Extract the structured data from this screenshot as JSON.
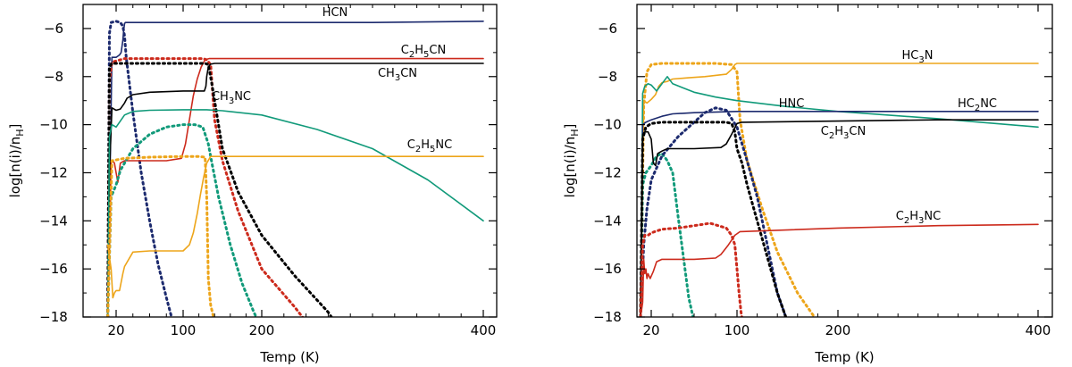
{
  "colors": {
    "navy": "#1c2a6e",
    "red": "#cc2a1c",
    "black": "#000000",
    "teal": "#119a7a",
    "orange": "#eda51a"
  },
  "chart_data": [
    {
      "type": "line",
      "id": "left",
      "title": "",
      "xlabel": "Temp (K)",
      "ylabel": "log[n(i)/n_H]",
      "xlim": [
        10,
        400
      ],
      "ylim": [
        -18,
        -5
      ],
      "xticks": [
        20,
        100,
        200,
        400
      ],
      "yticks": [
        -18,
        -16,
        -14,
        -12,
        -10,
        -8,
        -6
      ],
      "series": [
        {
          "name": "HCN",
          "label_parts": [
            [
              "HCN",
              ""
            ]
          ],
          "color": "navy",
          "style": "solid",
          "x": [
            10,
            15,
            20,
            22,
            24,
            26,
            28,
            29,
            30,
            31,
            33,
            40,
            100,
            200,
            300,
            400
          ],
          "y": [
            -18,
            -7.2,
            -7.2,
            -7.15,
            -7.1,
            -7.0,
            -6.5,
            -6.1,
            -5.8,
            -5.75,
            -5.75,
            -5.75,
            -5.75,
            -5.75,
            -5.75,
            -5.7
          ]
        },
        {
          "name": "HCN (gas)",
          "color": "navy",
          "style": "dotted",
          "x": [
            10,
            12,
            14,
            20,
            25,
            28,
            30,
            32,
            40,
            50,
            60,
            70,
            80,
            90
          ],
          "y": [
            -18,
            -6.2,
            -5.75,
            -5.7,
            -5.75,
            -5.9,
            -6.3,
            -7.2,
            -9.5,
            -12,
            -14,
            -15.8,
            -17.2,
            -18.5
          ]
        },
        {
          "name": "C2H5CN",
          "label_parts": [
            [
              "C",
              ""
            ],
            [
              "2",
              "sub"
            ],
            [
              "H",
              ""
            ],
            [
              "5",
              "sub"
            ],
            [
              "CN",
              ""
            ]
          ],
          "color": "red",
          "style": "solid",
          "x": [
            10,
            12,
            14,
            16,
            18,
            20,
            22,
            25,
            30,
            40,
            60,
            80,
            98,
            103,
            108,
            113,
            118,
            123,
            128,
            133,
            140,
            200,
            300,
            400
          ],
          "y": [
            -18,
            -15,
            -11.5,
            -11.5,
            -11.6,
            -12.0,
            -12.4,
            -11.6,
            -11.5,
            -11.5,
            -11.5,
            -11.5,
            -11.4,
            -10.8,
            -9.8,
            -8.8,
            -8.1,
            -7.6,
            -7.3,
            -7.25,
            -7.25,
            -7.25,
            -7.25,
            -7.25
          ]
        },
        {
          "name": "C2H5CN (gas)",
          "color": "red",
          "style": "dotted",
          "x": [
            10,
            12,
            15,
            30,
            60,
            90,
            110,
            125,
            130,
            135,
            140,
            150,
            170,
            200,
            230,
            245
          ],
          "y": [
            -18,
            -8.2,
            -7.4,
            -7.25,
            -7.25,
            -7.25,
            -7.25,
            -7.25,
            -7.3,
            -7.5,
            -9.8,
            -11.5,
            -13.6,
            -16,
            -17.6,
            -18.5
          ]
        },
        {
          "name": "CH3CN",
          "label_parts": [
            [
              "CH",
              ""
            ],
            [
              "3",
              "sub"
            ],
            [
              "CN",
              ""
            ]
          ],
          "color": "black",
          "style": "solid",
          "x": [
            10,
            12,
            15,
            20,
            25,
            30,
            33,
            40,
            60,
            100,
            127,
            129,
            130,
            132,
            135,
            140,
            200,
            300,
            400
          ],
          "y": [
            -18,
            -12,
            -9.3,
            -9.4,
            -9.35,
            -9.1,
            -8.9,
            -8.75,
            -8.65,
            -8.6,
            -8.6,
            -8.4,
            -8.0,
            -7.6,
            -7.48,
            -7.45,
            -7.45,
            -7.45,
            -7.45
          ]
        },
        {
          "name": "CH3CN (gas)",
          "color": "black",
          "style": "dotted",
          "x": [
            10,
            12,
            15,
            30,
            60,
            90,
            120,
            128,
            132,
            136,
            150,
            170,
            200,
            230,
            260,
            270
          ],
          "y": [
            -18,
            -7.6,
            -7.45,
            -7.45,
            -7.45,
            -7.45,
            -7.45,
            -7.45,
            -7.5,
            -8.2,
            -11,
            -12.8,
            -14.6,
            -16.3,
            -17.8,
            -18.5
          ]
        },
        {
          "name": "CH3NC",
          "label_parts": [
            [
              "CH",
              ""
            ],
            [
              "3",
              "sub"
            ],
            [
              "NC",
              ""
            ]
          ],
          "color": "teal",
          "style": "solid",
          "x": [
            10,
            12,
            15,
            20,
            25,
            30,
            40,
            60,
            100,
            130,
            150,
            200,
            250,
            300,
            350,
            400
          ],
          "y": [
            -18,
            -10.5,
            -10,
            -10.1,
            -9.85,
            -9.6,
            -9.45,
            -9.4,
            -9.38,
            -9.38,
            -9.42,
            -9.6,
            -10.2,
            -11.0,
            -12.3,
            -14.0
          ]
        },
        {
          "name": "CH3NC (gas)",
          "color": "teal",
          "style": "dotted",
          "x": [
            10,
            14,
            20,
            25,
            30,
            40,
            60,
            80,
            100,
            115,
            125,
            132,
            136,
            145,
            160,
            175,
            190,
            200
          ],
          "y": [
            -18,
            -13,
            -12.5,
            -11.9,
            -11.6,
            -11.0,
            -10.4,
            -10.1,
            -10.0,
            -10.0,
            -10.1,
            -10.8,
            -11.5,
            -13,
            -15,
            -16.6,
            -17.8,
            -18.5
          ]
        },
        {
          "name": "C2H5NC",
          "label_parts": [
            [
              "C",
              ""
            ],
            [
              "2",
              "sub"
            ],
            [
              "H",
              ""
            ],
            [
              "5",
              "sub"
            ],
            [
              "NC",
              ""
            ]
          ],
          "color": "orange",
          "style": "solid",
          "x": [
            10,
            14,
            16,
            18,
            20,
            24,
            28,
            30,
            40,
            60,
            80,
            100,
            108,
            113,
            118,
            122,
            126,
            130,
            135,
            200,
            300,
            400
          ],
          "y": [
            -15,
            -16,
            -17.2,
            -17.0,
            -16.9,
            -16.9,
            -16.2,
            -15.9,
            -15.3,
            -15.25,
            -15.25,
            -15.25,
            -15.0,
            -14.5,
            -13.7,
            -12.9,
            -12.2,
            -11.6,
            -11.32,
            -11.32,
            -11.32,
            -11.32
          ]
        },
        {
          "name": "C2H5NC (gas)",
          "color": "orange",
          "style": "dotted",
          "x": [
            10,
            15,
            30,
            60,
            100,
            120,
            128,
            130,
            132,
            135,
            140,
            145,
            150
          ],
          "y": [
            -18,
            -11.5,
            -11.4,
            -11.35,
            -11.32,
            -11.32,
            -11.35,
            -13,
            -16.4,
            -17.5,
            -18.2,
            -18.5,
            -18.7
          ]
        }
      ]
    },
    {
      "type": "line",
      "id": "right",
      "title": "",
      "xlabel": "Temp (K)",
      "ylabel": "log[n(i)/n_H]",
      "xlim": [
        10,
        400
      ],
      "ylim": [
        -18,
        -5
      ],
      "xticks": [
        20,
        100,
        200,
        400
      ],
      "yticks": [
        -18,
        -16,
        -14,
        -12,
        -10,
        -8,
        -6
      ],
      "series": [
        {
          "name": "HC3N",
          "label_parts": [
            [
              "HC",
              ""
            ],
            [
              "3",
              "sub"
            ],
            [
              "N",
              ""
            ]
          ],
          "color": "orange",
          "style": "solid",
          "x": [
            10,
            13,
            16,
            20,
            24,
            27,
            30,
            35,
            40,
            55,
            70,
            80,
            90,
            95,
            98,
            100,
            102,
            110,
            200,
            300,
            400
          ],
          "y": [
            -18,
            -9.0,
            -9.1,
            -8.95,
            -8.75,
            -8.4,
            -8.25,
            -8.2,
            -8.1,
            -8.05,
            -8.0,
            -7.95,
            -7.9,
            -7.7,
            -7.5,
            -7.45,
            -7.45,
            -7.45,
            -7.45,
            -7.45,
            -7.45
          ]
        },
        {
          "name": "HC3N (gas)",
          "color": "orange",
          "style": "dotted",
          "x": [
            10,
            13,
            16,
            20,
            30,
            45,
            60,
            80,
            95,
            100,
            103,
            110,
            125,
            140,
            160,
            180,
            186
          ],
          "y": [
            -18,
            -9.2,
            -7.8,
            -7.5,
            -7.45,
            -7.45,
            -7.45,
            -7.45,
            -7.5,
            -7.8,
            -9.8,
            -11.5,
            -13.5,
            -15.3,
            -17,
            -18.2,
            -18.5
          ]
        },
        {
          "name": "HNC",
          "label_parts": [
            [
              "HNC",
              ""
            ]
          ],
          "color": "teal",
          "style": "solid",
          "x": [
            10,
            12,
            14,
            17,
            20,
            25,
            30,
            35,
            40,
            60,
            80,
            100,
            150,
            200,
            300,
            400
          ],
          "y": [
            -18,
            -8.7,
            -8.4,
            -8.3,
            -8.35,
            -8.6,
            -8.3,
            -8.0,
            -8.3,
            -8.65,
            -8.85,
            -9.0,
            -9.25,
            -9.45,
            -9.75,
            -10.1
          ]
        },
        {
          "name": "HNC (gas)",
          "color": "teal",
          "style": "dotted",
          "x": [
            10,
            12,
            15,
            20,
            25,
            30,
            35,
            40,
            45,
            50,
            55,
            60,
            62
          ],
          "y": [
            -18,
            -12.5,
            -12.0,
            -11.7,
            -11.3,
            -11.2,
            -11.5,
            -12.0,
            -13.8,
            -15.5,
            -17.2,
            -18.2,
            -18.6
          ]
        },
        {
          "name": "HC2NC",
          "label_parts": [
            [
              "HC",
              ""
            ],
            [
              "2",
              "sub"
            ],
            [
              "NC",
              ""
            ]
          ],
          "color": "navy",
          "style": "solid",
          "x": [
            10,
            12,
            15,
            20,
            30,
            40,
            60,
            100,
            200,
            300,
            400
          ],
          "y": [
            -18,
            -10.0,
            -9.9,
            -9.8,
            -9.65,
            -9.55,
            -9.5,
            -9.45,
            -9.45,
            -9.45,
            -9.45
          ]
        },
        {
          "name": "HC2NC (gas)",
          "color": "navy",
          "style": "dotted",
          "x": [
            10,
            13,
            16,
            20,
            30,
            45,
            60,
            70,
            80,
            90,
            100,
            110,
            120,
            130,
            140,
            150,
            153
          ],
          "y": [
            -18,
            -15,
            -13.5,
            -12.3,
            -11.3,
            -10.5,
            -9.9,
            -9.5,
            -9.3,
            -9.4,
            -10.1,
            -11.5,
            -13,
            -15,
            -17,
            -18.2,
            -18.5
          ]
        },
        {
          "name": "C2H3CN",
          "label_parts": [
            [
              "C",
              ""
            ],
            [
              "2",
              "sub"
            ],
            [
              "H",
              ""
            ],
            [
              "3",
              "sub"
            ],
            [
              "CN",
              ""
            ]
          ],
          "color": "black",
          "style": "solid",
          "x": [
            10,
            12,
            14,
            17,
            20,
            22,
            24,
            26,
            30,
            35,
            40,
            60,
            85,
            90,
            95,
            100,
            105,
            200,
            300,
            400
          ],
          "y": [
            -18,
            -10.4,
            -10.3,
            -10.3,
            -10.6,
            -11.6,
            -11.7,
            -11.2,
            -11.1,
            -11.0,
            -11.0,
            -11.0,
            -10.95,
            -10.8,
            -10.4,
            -9.95,
            -9.9,
            -9.85,
            -9.8,
            -9.8
          ]
        },
        {
          "name": "C2H3CN (gas)",
          "color": "black",
          "style": "dotted",
          "x": [
            10,
            12,
            15,
            20,
            30,
            40,
            60,
            80,
            90,
            95,
            98,
            100,
            105,
            110,
            120,
            130,
            140,
            150,
            155
          ],
          "y": [
            -18,
            -10.6,
            -10.1,
            -9.95,
            -9.9,
            -9.9,
            -9.9,
            -9.9,
            -9.9,
            -9.95,
            -10.3,
            -11.0,
            -11.6,
            -12.5,
            -14,
            -15.5,
            -17,
            -18.2,
            -18.6
          ]
        },
        {
          "name": "C2H3NC",
          "label_parts": [
            [
              "C",
              ""
            ],
            [
              "2",
              "sub"
            ],
            [
              "H",
              ""
            ],
            [
              "3",
              "sub"
            ],
            [
              "NC",
              ""
            ]
          ],
          "color": "red",
          "style": "solid",
          "x": [
            10,
            12,
            13,
            14,
            15,
            16,
            17,
            19,
            22,
            25,
            30,
            40,
            60,
            80,
            85,
            92,
            98,
            103,
            200,
            300,
            400
          ],
          "y": [
            -18,
            -17.4,
            -15.6,
            -16.2,
            -16.0,
            -16.4,
            -16.2,
            -16.4,
            -16.1,
            -15.7,
            -15.6,
            -15.6,
            -15.6,
            -15.55,
            -15.4,
            -15.0,
            -14.6,
            -14.45,
            -14.3,
            -14.2,
            -14.15
          ]
        },
        {
          "name": "C2H3NC (gas)",
          "color": "red",
          "style": "dotted",
          "x": [
            10,
            12,
            14,
            17,
            20,
            30,
            45,
            60,
            75,
            90,
            95,
            98,
            100,
            102,
            104,
            106,
            108
          ],
          "y": [
            -18,
            -15,
            -14.6,
            -14.6,
            -14.5,
            -14.35,
            -14.3,
            -14.2,
            -14.1,
            -14.3,
            -14.6,
            -15,
            -16,
            -17,
            -17.8,
            -18.3,
            -18.6
          ]
        }
      ]
    }
  ]
}
